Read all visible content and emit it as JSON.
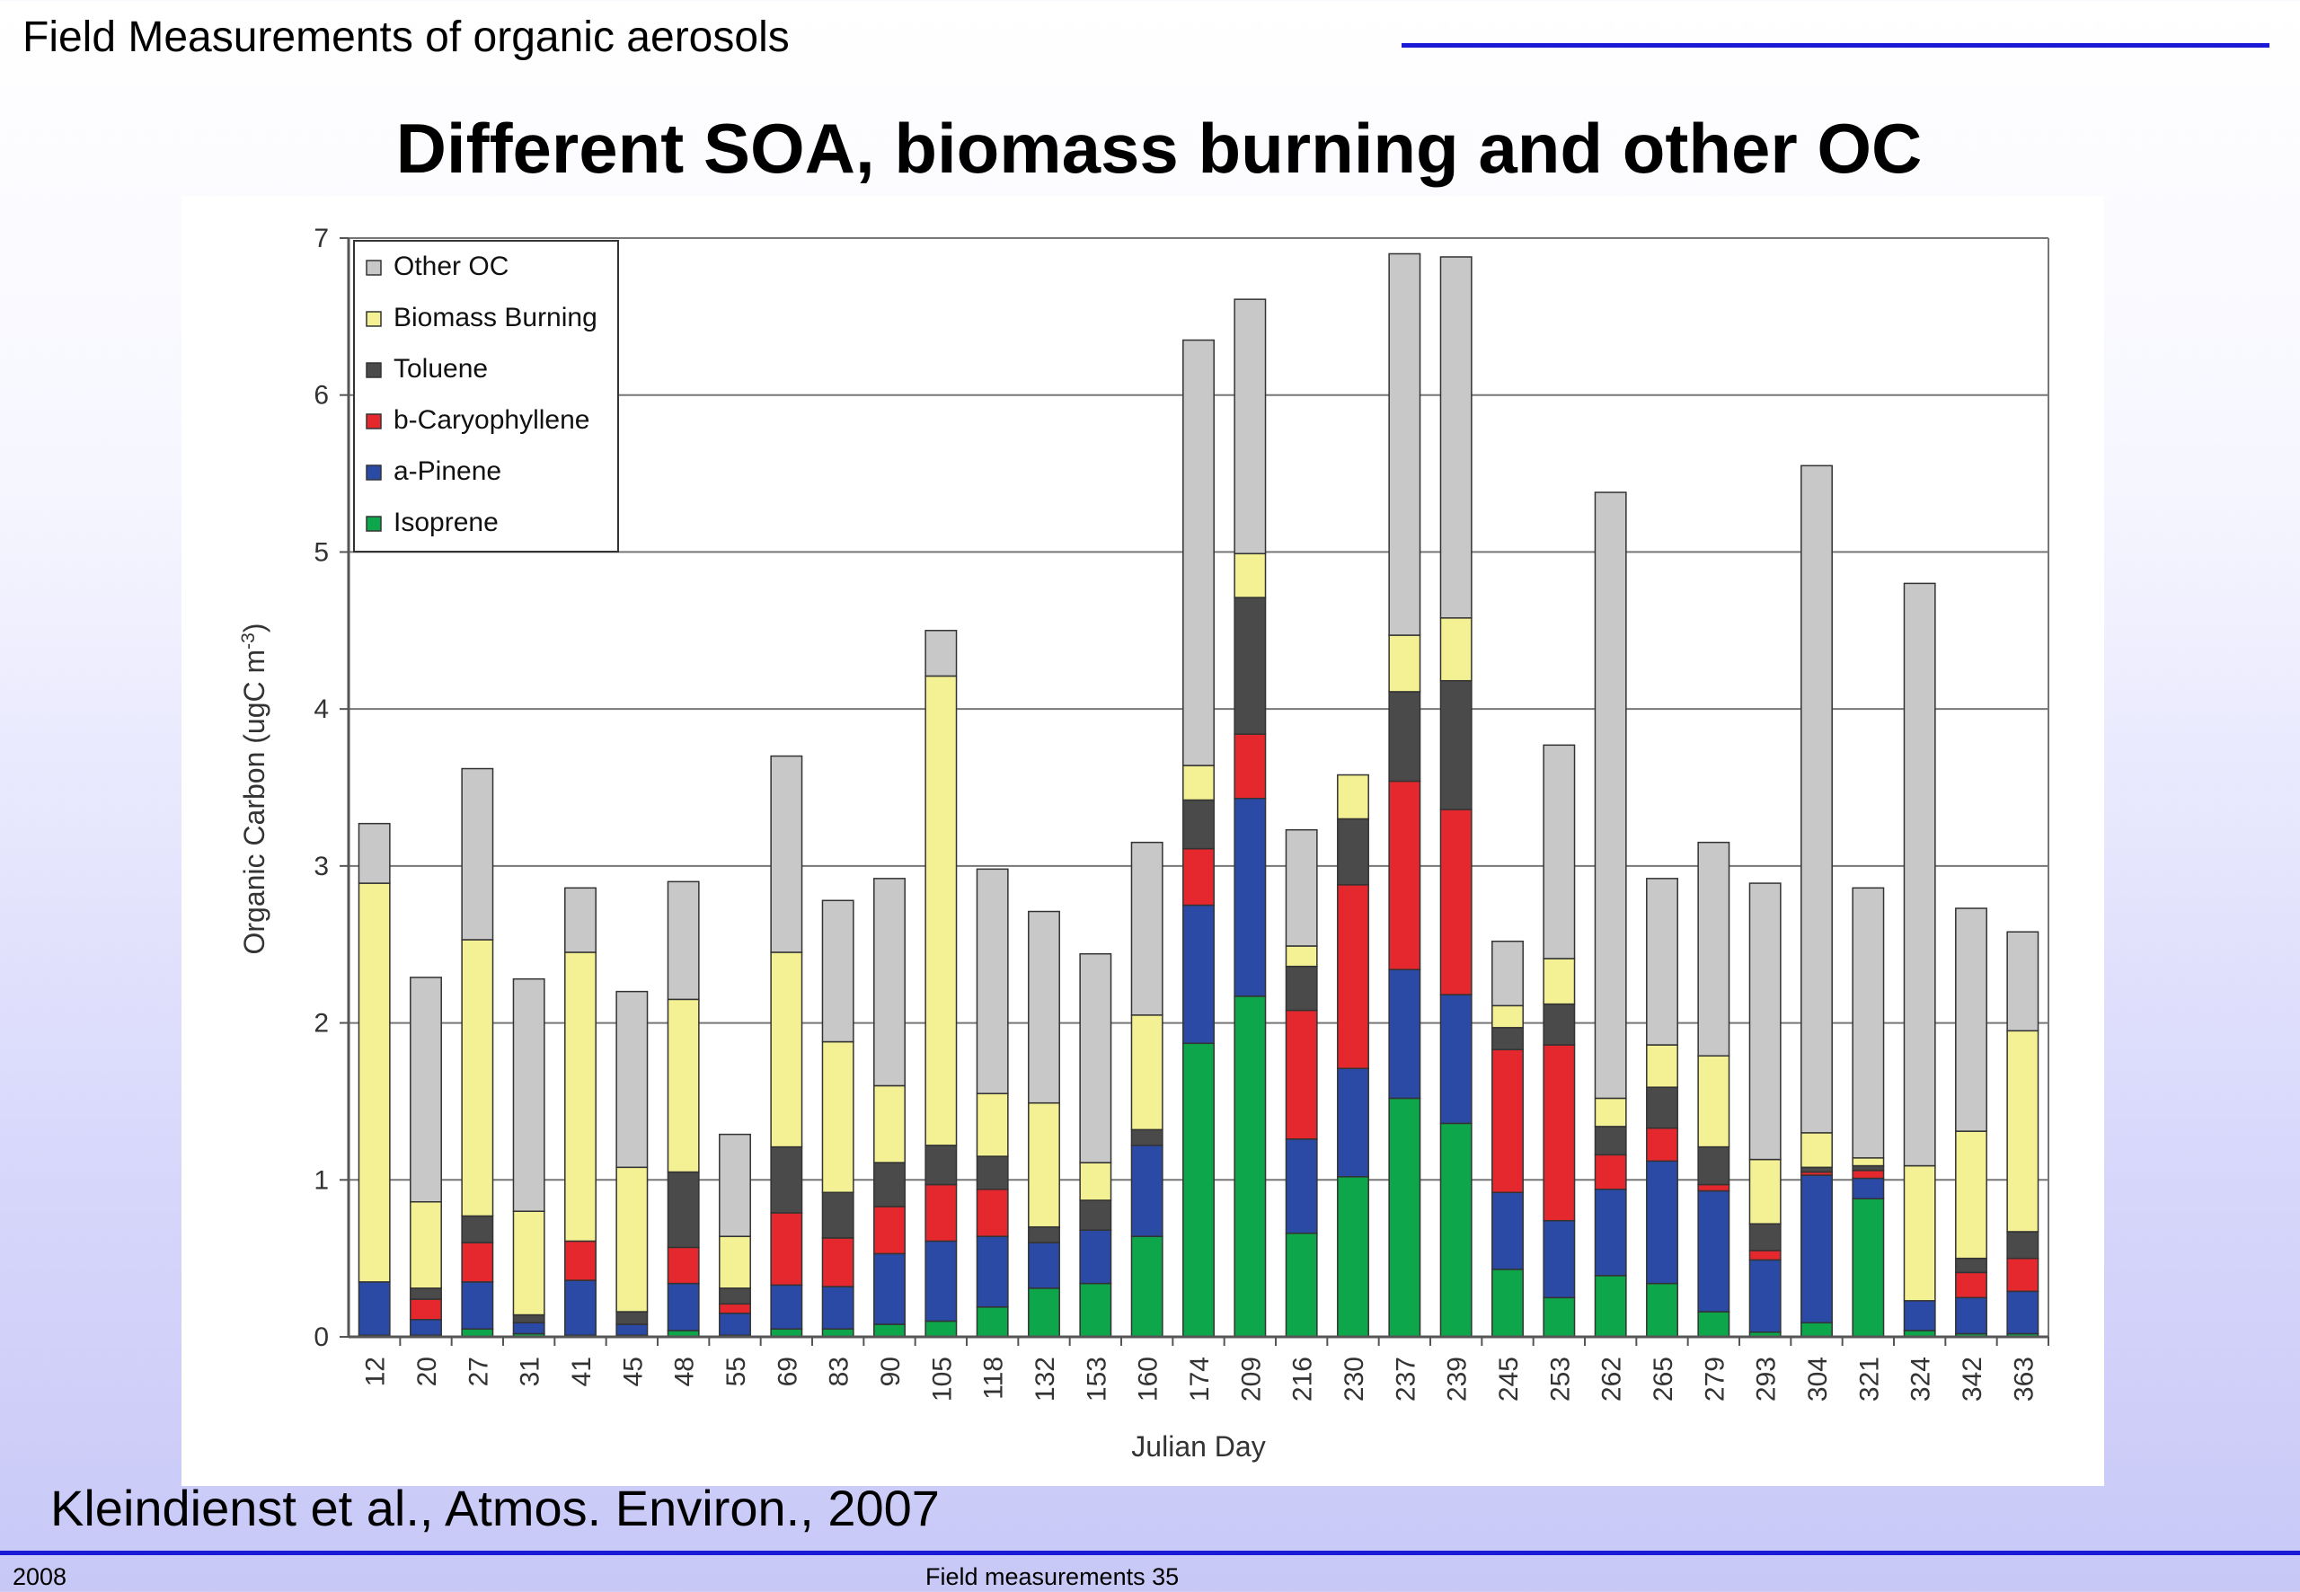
{
  "header": {
    "text": "Field Measurements of organic aerosols"
  },
  "slide_title": "Different SOA, biomass burning and other OC",
  "citation": "Kleindienst et al., Atmos. Environ., 2007",
  "footer": {
    "left": "2008",
    "center": "Field measurements 35"
  },
  "colors": {
    "accent_line": "#1a1ad6"
  },
  "chart_data": {
    "type": "bar",
    "stacked": true,
    "title": "",
    "xlabel": "Julian Day",
    "ylabel": "Organic Carbon (ugC m",
    "ylabel_sup": "-3",
    "ylabel_close": ")",
    "ylim": [
      0,
      7
    ],
    "yticks": [
      0,
      1,
      2,
      3,
      4,
      5,
      6,
      7
    ],
    "grid": true,
    "legend_position": "top-left",
    "categories": [
      "12",
      "20",
      "27",
      "31",
      "41",
      "45",
      "48",
      "55",
      "69",
      "83",
      "90",
      "105",
      "118",
      "132",
      "153",
      "160",
      "174",
      "209",
      "216",
      "230",
      "237",
      "239",
      "245",
      "253",
      "262",
      "265",
      "279",
      "293",
      "304",
      "321",
      "324",
      "342",
      "363"
    ],
    "series": [
      {
        "name": "Isoprene",
        "color": "#0ea64b",
        "values": [
          0.01,
          0.01,
          0.05,
          0.02,
          0.01,
          0.01,
          0.04,
          0.01,
          0.05,
          0.05,
          0.08,
          0.1,
          0.19,
          0.31,
          0.34,
          0.64,
          1.87,
          2.17,
          0.66,
          1.02,
          1.52,
          1.36,
          0.43,
          0.25,
          0.39,
          0.34,
          0.16,
          0.03,
          0.09,
          0.88,
          0.04,
          0.02,
          0.02
        ]
      },
      {
        "name": "a-Pinene",
        "color": "#2b4aa6",
        "values": [
          0.34,
          0.1,
          0.3,
          0.07,
          0.35,
          0.07,
          0.3,
          0.14,
          0.28,
          0.27,
          0.45,
          0.51,
          0.45,
          0.29,
          0.34,
          0.58,
          0.88,
          1.26,
          0.6,
          0.69,
          0.82,
          0.82,
          0.49,
          0.49,
          0.55,
          0.78,
          0.77,
          0.46,
          0.94,
          0.13,
          0.19,
          0.23,
          0.27
        ]
      },
      {
        "name": "b-Caryophyllene",
        "color": "#e5282d",
        "values": [
          0,
          0.13,
          0.25,
          0,
          0.25,
          0,
          0.23,
          0.06,
          0.46,
          0.31,
          0.3,
          0.36,
          0.3,
          0,
          0,
          0,
          0.36,
          0.41,
          0.82,
          1.17,
          1.2,
          1.18,
          0.91,
          1.12,
          0.22,
          0.21,
          0.04,
          0.06,
          0.02,
          0.05,
          0,
          0.16,
          0.21
        ]
      },
      {
        "name": "Toluene",
        "color": "#4a4a4a",
        "values": [
          0,
          0.07,
          0.17,
          0.05,
          0,
          0.08,
          0.48,
          0.1,
          0.42,
          0.29,
          0.28,
          0.25,
          0.21,
          0.1,
          0.19,
          0.1,
          0.31,
          0.87,
          0.28,
          0.42,
          0.57,
          0.82,
          0.14,
          0.26,
          0.18,
          0.26,
          0.24,
          0.17,
          0.03,
          0.03,
          0,
          0.09,
          0.17
        ]
      },
      {
        "name": "Biomass Burning",
        "color": "#f3f193",
        "values": [
          2.54,
          0.55,
          1.76,
          0.66,
          1.84,
          0.92,
          1.1,
          0.33,
          1.24,
          0.96,
          0.49,
          2.99,
          0.4,
          0.79,
          0.24,
          0.73,
          0.22,
          0.28,
          0.13,
          0.28,
          0.36,
          0.4,
          0.14,
          0.29,
          0.18,
          0.27,
          0.58,
          0.41,
          0.22,
          0.05,
          0.86,
          0.81,
          1.28
        ]
      },
      {
        "name": "Other OC",
        "color": "#c8c8c8",
        "values": [
          0.38,
          1.43,
          1.09,
          1.48,
          0.41,
          1.12,
          0.75,
          0.65,
          1.25,
          0.9,
          1.32,
          0.29,
          1.43,
          1.22,
          1.33,
          1.1,
          2.71,
          1.62,
          0.74,
          0,
          2.43,
          2.3,
          0.41,
          1.36,
          3.86,
          1.06,
          1.36,
          1.76,
          4.25,
          1.72,
          3.71,
          1.42,
          0.63
        ]
      }
    ]
  }
}
